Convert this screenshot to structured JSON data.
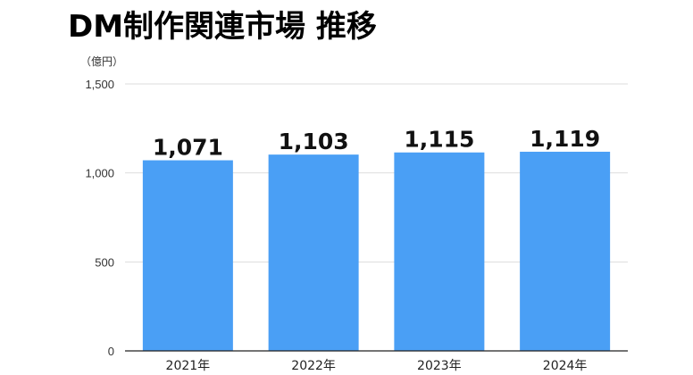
{
  "title": "DM制作関連市場 推移",
  "colors": {
    "bar": "#4a9ff5",
    "grid": "#dddddd",
    "axis": "#222222"
  },
  "chart_data": {
    "type": "bar",
    "title": "DM制作関連市場 推移",
    "unit_label": "（億円）",
    "categories": [
      "2021年",
      "2022年",
      "2023年",
      "2024年"
    ],
    "values": [
      1071,
      1103,
      1115,
      1119
    ],
    "data_labels": [
      "1,071",
      "1,103",
      "1,115",
      "1,119"
    ],
    "yticks": [
      0,
      500,
      1000,
      1500
    ],
    "ytick_labels": [
      "0",
      "500",
      "1,000",
      "1,500"
    ],
    "ylim": [
      0,
      1500
    ],
    "grid": true,
    "legend": "none"
  }
}
